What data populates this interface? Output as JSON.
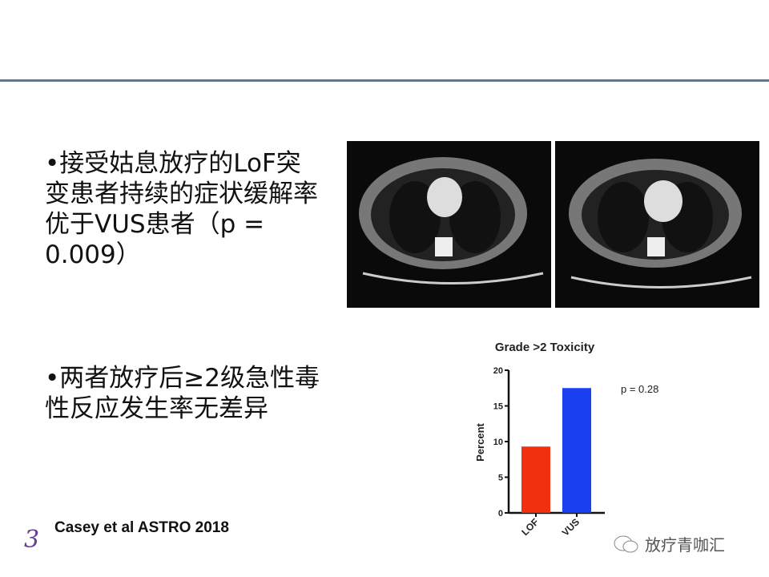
{
  "bullets": [
    {
      "text": "•接受姑息放疗的LoF突变患者持续的症状缓解率优于VUS患者（p = 0.009）"
    },
    {
      "text": "•两者放疗后≥2级急性毒性反应发生率无差异"
    }
  ],
  "citation": "Casey et al ASTRO 2018",
  "page_number": "3",
  "watermark": "放疗青咖汇",
  "chart_data": {
    "type": "bar",
    "title": "Grade >2 Toxicity",
    "categories": [
      "LOF",
      "VUS"
    ],
    "values": [
      9.3,
      17.5
    ],
    "colors": [
      "#f0300f",
      "#1a3ff0"
    ],
    "ylabel": "Percent",
    "xlabel": "",
    "ylim": [
      0,
      20
    ],
    "yticks": [
      0,
      5,
      10,
      15,
      20
    ],
    "annotation": "p = 0.28",
    "grid": false
  }
}
